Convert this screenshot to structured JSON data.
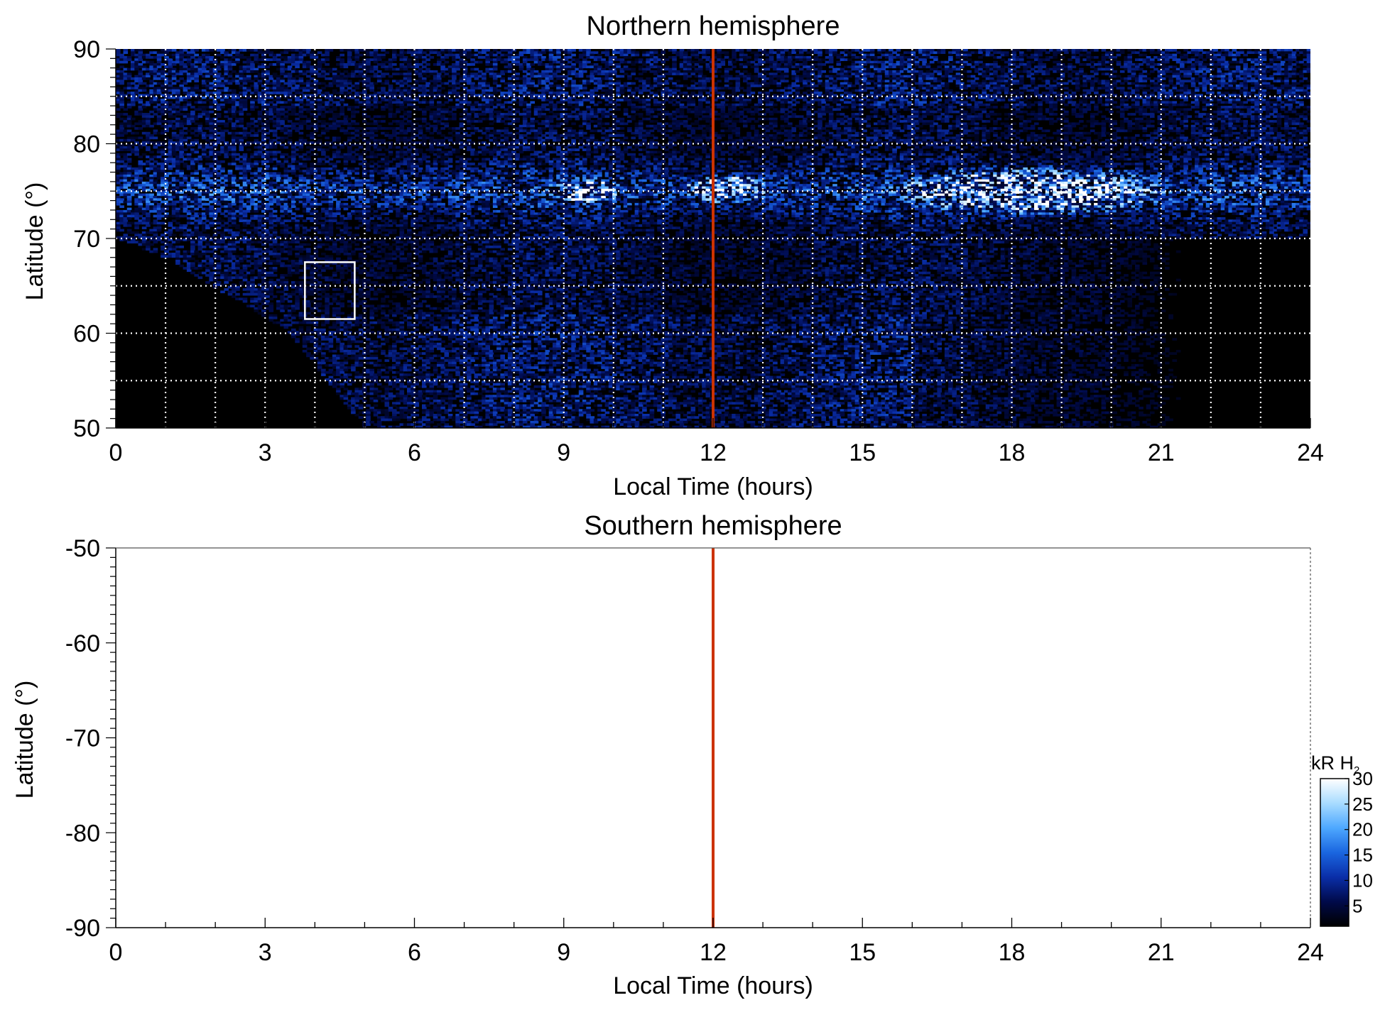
{
  "chart_data": [
    {
      "type": "heatmap",
      "title": "Northern hemisphere",
      "xlabel": "Local Time (hours)",
      "ylabel": "Latitude (°)",
      "xlim": [
        0,
        24
      ],
      "ylim": [
        50,
        90
      ],
      "xticks": [
        "0",
        "3",
        "6",
        "9",
        "12",
        "15",
        "18",
        "21",
        "24"
      ],
      "yticks": [
        "50",
        "60",
        "70",
        "80",
        "90"
      ],
      "grid": true,
      "grid_x_step_hours": 1,
      "grid_y_step_deg": 5,
      "noon_marker": {
        "x": 12,
        "color": "#cc3300"
      },
      "highlight_box": {
        "x": [
          3.8,
          4.8
        ],
        "y": [
          61.5,
          67.5
        ],
        "color": "#ffffff"
      },
      "emission": {
        "bright_oval_latitude": 75,
        "bright_regions": [
          {
            "x": [
              8.8,
              10.2
            ],
            "y": [
              73.5,
              76.5
            ]
          },
          {
            "x": [
              11.3,
              13.2
            ],
            "y": [
              73.5,
              77
            ]
          },
          {
            "x": [
              15.5,
              21.5
            ],
            "y": [
              72,
              78
            ]
          }
        ],
        "no_data_boundary": [
          [
            0,
            70
          ],
          [
            1,
            68
          ],
          [
            3.5,
            60
          ],
          [
            5,
            50
          ]
        ]
      }
    },
    {
      "type": "heatmap",
      "title": "Southern hemisphere",
      "xlabel": "Local Time (hours)",
      "ylabel": "Latitude (°)",
      "xlim": [
        0,
        24
      ],
      "ylim": [
        -90,
        -50
      ],
      "xticks": [
        "0",
        "3",
        "6",
        "9",
        "12",
        "15",
        "18",
        "21",
        "24"
      ],
      "yticks": [
        "-50",
        "-60",
        "-70",
        "-80",
        "-90"
      ],
      "grid": false,
      "noon_marker": {
        "x": 12,
        "color": "#cc3300"
      },
      "emission": null
    }
  ],
  "colorbar": {
    "label": "kR H",
    "label_sub": "2",
    "range": [
      1,
      30
    ],
    "ticks": [
      "5",
      "10",
      "15",
      "20",
      "25",
      "30"
    ],
    "colors": [
      "#000000",
      "#000a4a",
      "#0a2ea8",
      "#1a66e0",
      "#4ea8ff",
      "#a8dcff",
      "#ffffff"
    ]
  }
}
